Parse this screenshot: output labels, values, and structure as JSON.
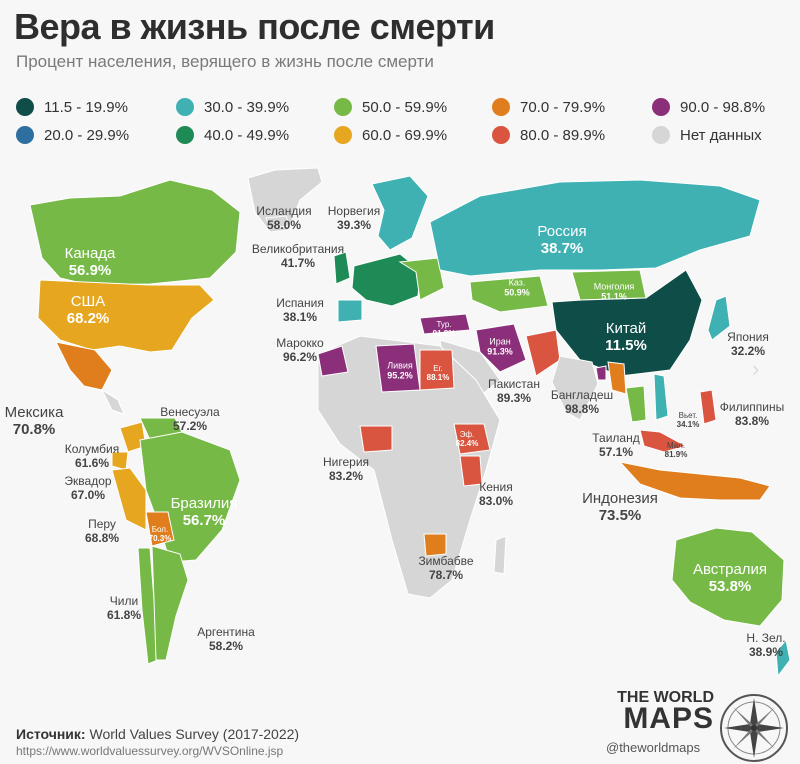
{
  "title": "Вера в жизнь после смерти",
  "subtitle": "Процент населения, верящего в жизнь после смерти",
  "legend": [
    {
      "label": "11.5 - 19.9%",
      "color": "#0f4d48"
    },
    {
      "label": "20.0 - 29.9%",
      "color": "#2d6fa0"
    },
    {
      "label": "30.0 - 39.9%",
      "color": "#3fb1b3"
    },
    {
      "label": "40.0 - 49.9%",
      "color": "#1e8a55"
    },
    {
      "label": "50.0 - 59.9%",
      "color": "#76b947"
    },
    {
      "label": "60.0 - 69.9%",
      "color": "#e6a620"
    },
    {
      "label": "70.0 - 79.9%",
      "color": "#e07d1c"
    },
    {
      "label": "80.0 - 89.9%",
      "color": "#d9553f"
    },
    {
      "label": "90.0 - 98.8%",
      "color": "#8c2f7b"
    },
    {
      "label": "Нет данных",
      "color": "#d6d6d6"
    }
  ],
  "countries": {
    "iceland": {
      "name": "Исландия",
      "value": "58.0%"
    },
    "norway": {
      "name": "Норвегия",
      "value": "39.3%"
    },
    "uk": {
      "name": "Великобритания",
      "value": "41.7%"
    },
    "spain": {
      "name": "Испания",
      "value": "38.1%"
    },
    "morocco": {
      "name": "Марокко",
      "value": "96.2%"
    },
    "russia": {
      "name": "Россия",
      "value": "38.7%"
    },
    "kazakhstan": {
      "name": "Каз.",
      "value": "50.9%"
    },
    "mongolia": {
      "name": "Монголия",
      "value": "51.1%"
    },
    "china": {
      "name": "Китай",
      "value": "11.5%"
    },
    "japan": {
      "name": "Япония",
      "value": "32.2%"
    },
    "turkey": {
      "name": "Тур.",
      "value": "91.8%"
    },
    "iran": {
      "name": "Иран",
      "value": "91.3%"
    },
    "pakistan": {
      "name": "Пакистан",
      "value": "89.3%"
    },
    "bangladesh": {
      "name": "Бангладеш",
      "value": "98.8%"
    },
    "libya": {
      "name": "Ливия",
      "value": "95.2%"
    },
    "egypt": {
      "name": "Ег.",
      "value": "88.1%"
    },
    "ethiopia": {
      "name": "Эф.",
      "value": "82.4%"
    },
    "kenya": {
      "name": "Кения",
      "value": "83.0%"
    },
    "nigeria": {
      "name": "Нигерия",
      "value": "83.2%"
    },
    "zimbabwe": {
      "name": "Зимбабве",
      "value": "78.7%"
    },
    "vietnam": {
      "name": "Вьет.",
      "value": "34.1%"
    },
    "philippines": {
      "name": "Филиппины",
      "value": "83.8%"
    },
    "thailand": {
      "name": "Таиланд",
      "value": "57.1%"
    },
    "malaysia": {
      "name": "Мал.",
      "value": "81.9%"
    },
    "indonesia": {
      "name": "Индонезия",
      "value": "73.5%"
    },
    "australia": {
      "name": "Австралия",
      "value": "53.8%"
    },
    "newzealand": {
      "name": "Н. Зел.",
      "value": "38.9%"
    },
    "canada": {
      "name": "Канада",
      "value": "56.9%"
    },
    "usa": {
      "name": "США",
      "value": "68.2%"
    },
    "mexico": {
      "name": "Мексика",
      "value": "70.8%"
    },
    "venezuela": {
      "name": "Венесуэла",
      "value": "57.2%"
    },
    "colombia": {
      "name": "Колумбия",
      "value": "61.6%"
    },
    "ecuador": {
      "name": "Эквадор",
      "value": "67.0%"
    },
    "peru": {
      "name": "Перу",
      "value": "68.8%"
    },
    "brazil": {
      "name": "Бразилия",
      "value": "56.7%"
    },
    "bolivia": {
      "name": "Бол.",
      "value": "70.3%"
    },
    "chile": {
      "name": "Чили",
      "value": "61.8%"
    },
    "argentina": {
      "name": "Аргентина",
      "value": "58.2%"
    }
  },
  "source": {
    "label": "Источник:",
    "text": "World Values Survey (2017-2022)",
    "url": "https://www.worldvaluessurvey.org/WVSOnline.jsp"
  },
  "brand": {
    "line1": "THE WORLD",
    "line2": "MAPS",
    "handle": "@theworldmaps"
  }
}
